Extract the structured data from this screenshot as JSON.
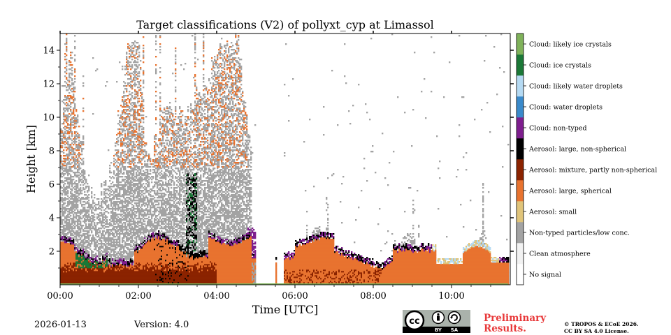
{
  "chart_data": {
    "type": "heatmap",
    "title": "Target classifications (V2) of pollyxt_cyp at Limassol",
    "xlabel": "Time [UTC]",
    "ylabel": "Height [km]",
    "xlim_hours": [
      0,
      11.5
    ],
    "ylim_km": [
      0,
      15
    ],
    "x_ticks": [
      {
        "value": 0,
        "label": "00:00"
      },
      {
        "value": 2,
        "label": "02:00"
      },
      {
        "value": 4,
        "label": "04:00"
      },
      {
        "value": 6,
        "label": "06:00"
      },
      {
        "value": 8,
        "label": "08:00"
      },
      {
        "value": 10,
        "label": "10:00"
      }
    ],
    "y_ticks": [
      {
        "value": 2,
        "label": "2"
      },
      {
        "value": 4,
        "label": "4"
      },
      {
        "value": 6,
        "label": "6"
      },
      {
        "value": 8,
        "label": "8"
      },
      {
        "value": 10,
        "label": "10"
      },
      {
        "value": 12,
        "label": "12"
      },
      {
        "value": 14,
        "label": "14"
      }
    ],
    "classes": [
      {
        "label": "No signal",
        "color": "#ffffff"
      },
      {
        "label": "Clean atmosphere",
        "color": "#f2f2f2"
      },
      {
        "label": "Non-typed particles/low conc.",
        "color": "#a3a3a3"
      },
      {
        "label": "Aerosol: small",
        "color": "#e0c47a"
      },
      {
        "label": "Aerosol: large, spherical",
        "color": "#e8732f"
      },
      {
        "label": "Aerosol: mixture, partly non-spherical",
        "color": "#8b2300"
      },
      {
        "label": "Aerosol: large, non-spherical",
        "color": "#000000"
      },
      {
        "label": "Cloud: non-typed",
        "color": "#7e1e8e"
      },
      {
        "label": "Cloud: water droplets",
        "color": "#3a8acb"
      },
      {
        "label": "Cloud: likely water droplets",
        "color": "#b5daf3"
      },
      {
        "label": "Cloud: ice crystals",
        "color": "#1b7837"
      },
      {
        "label": "Cloud: likely ice crystals",
        "color": "#7fb25a"
      }
    ],
    "data_gaps_hours": [
      [
        5.0,
        5.5
      ],
      [
        5.55,
        5.7
      ]
    ],
    "layers": [
      {
        "class": "Aerosol: large, spherical",
        "time_range": [
          0,
          11.45
        ],
        "height_km": [
          0,
          2.6
        ]
      },
      {
        "class": "Aerosol: mixture, partly non-spherical",
        "time_range": [
          0,
          4.0
        ],
        "height_km": [
          0,
          1.3
        ]
      },
      {
        "class": "Cloud: ice crystals",
        "time_range": [
          0.4,
          1.2
        ],
        "height_km": [
          1.0,
          3.3
        ]
      },
      {
        "class": "Non-typed particles/low conc.",
        "time_range": [
          0,
          4.8
        ],
        "height_km": [
          2.5,
          14.5
        ]
      },
      {
        "class": "Non-typed particles/low conc.",
        "time_range": [
          6.2,
          7.2
        ],
        "height_km": [
          2.0,
          3.5
        ]
      },
      {
        "class": "Non-typed particles/low conc.",
        "time_range": [
          8.5,
          9.5
        ],
        "height_km": [
          1.8,
          3.3
        ]
      },
      {
        "class": "Aerosol: large, non-spherical",
        "time_range": [
          3.2,
          3.5
        ],
        "height_km": [
          2.5,
          6.7
        ]
      },
      {
        "class": "Cloud: non-typed",
        "time_range": [
          4.8,
          5.2
        ],
        "height_km": [
          2.6,
          3.4
        ]
      }
    ],
    "date": "2026-01-13",
    "version": "Version: 4.0"
  },
  "footer": {
    "date": "2026-01-13",
    "version": "Version: 4.0",
    "preliminary_line1": "Preliminary",
    "preliminary_line2": "Results.",
    "copyright_line1": "© TROPOS & ECoE 2026.",
    "copyright_line2": "CC BY SA 4.0 License.",
    "license_badge": {
      "cc": "cc",
      "by": "BY",
      "sa": "SA"
    }
  },
  "icons": [
    "cc-license-icon",
    "attribution-icon",
    "share-alike-icon"
  ]
}
